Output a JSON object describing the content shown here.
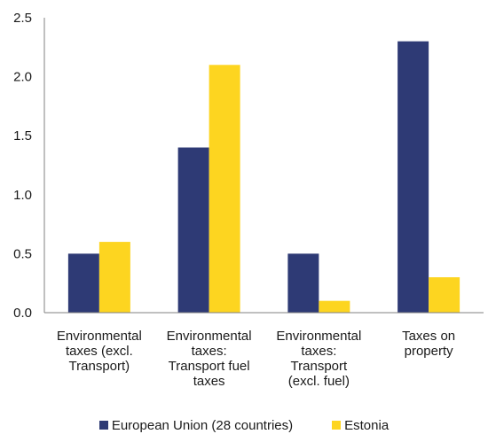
{
  "chart_data": {
    "type": "bar",
    "categories": [
      [
        "Environmental",
        "taxes (excl.",
        "Transport)"
      ],
      [
        "Environmental",
        "taxes:",
        "Transport fuel",
        "taxes"
      ],
      [
        "Environmental",
        "taxes:",
        "Transport",
        "(excl. fuel)"
      ],
      [
        "Taxes on",
        "property"
      ]
    ],
    "series": [
      {
        "name": "European Union (28 countries)",
        "color": "#2e3a75",
        "values": [
          0.5,
          1.4,
          0.5,
          2.3
        ]
      },
      {
        "name": "Estonia",
        "color": "#fdd520",
        "values": [
          0.6,
          2.1,
          0.1,
          0.3
        ]
      }
    ],
    "yticks": [
      "0.0",
      "0.5",
      "1.0",
      "1.5",
      "2.0",
      "2.5"
    ],
    "ylim": [
      0,
      2.5
    ],
    "grid": false,
    "legend_position": "bottom"
  }
}
